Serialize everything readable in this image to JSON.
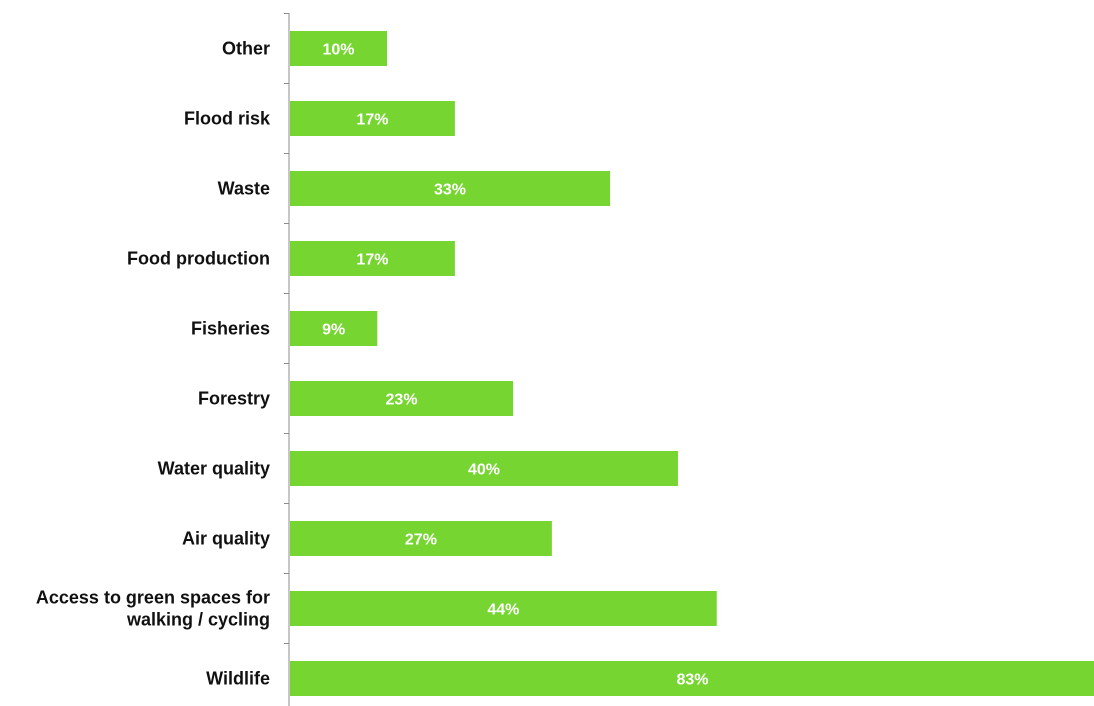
{
  "chart_data": {
    "type": "bar",
    "orientation": "horizontal",
    "title": "",
    "xlabel": "",
    "ylabel": "",
    "categories": [
      "Other",
      "Flood risk",
      "Waste",
      "Food production",
      "Fisheries",
      "Forestry",
      "Water quality",
      "Air quality",
      "Access to green spaces for walking / cycling",
      "Wildlife"
    ],
    "category_lines": [
      [
        "Other"
      ],
      [
        "Flood risk"
      ],
      [
        "Waste"
      ],
      [
        "Food production"
      ],
      [
        "Fisheries"
      ],
      [
        "Forestry"
      ],
      [
        "Water quality"
      ],
      [
        "Air quality"
      ],
      [
        "Access to green spaces for",
        "walking / cycling"
      ],
      [
        "Wildlife"
      ]
    ],
    "values": [
      10,
      17,
      33,
      17,
      9,
      23,
      40,
      27,
      44,
      83
    ],
    "data_labels": [
      "10%",
      "17%",
      "33%",
      "17%",
      "9%",
      "23%",
      "40%",
      "27%",
      "44%",
      "83%"
    ],
    "xlim": [
      0,
      83
    ],
    "unit": "%",
    "grid": false,
    "bar_color": "#76d530",
    "label_color": "#ffffff",
    "axis_color": "#8c8c8c"
  }
}
